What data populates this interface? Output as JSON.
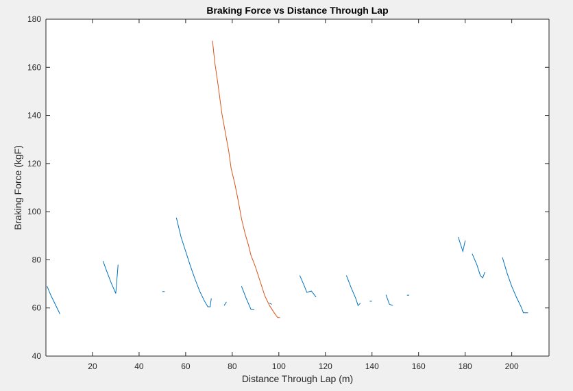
{
  "chart_data": {
    "type": "line",
    "title": "Braking Force vs Distance Through Lap",
    "xlabel": "Distance Through Lap (m)",
    "ylabel": "Braking Force (kgF)",
    "xlim": [
      0,
      216
    ],
    "ylim": [
      40,
      180
    ],
    "xticks": [
      20,
      40,
      60,
      80,
      100,
      120,
      140,
      160,
      180,
      200
    ],
    "yticks": [
      40,
      60,
      80,
      100,
      120,
      140,
      160,
      180
    ],
    "grid": false,
    "colors": {
      "blue": "#0072BD",
      "orange": "#D95319",
      "axes_bg": "#ffffff",
      "figure_bg": "#f0f0f0"
    },
    "series": [
      {
        "color": "#0072BD",
        "segments": [
          [
            [
              0.5,
              69
            ],
            [
              2,
              65.5
            ],
            [
              4,
              61.5
            ],
            [
              6,
              57.5
            ]
          ],
          [
            [
              24.5,
              79.5
            ],
            [
              26,
              75.5
            ],
            [
              28,
              70.5
            ],
            [
              30,
              66
            ],
            [
              31,
              78
            ]
          ],
          [
            [
              50,
              66.8
            ],
            [
              51,
              66.8
            ]
          ],
          [
            [
              56,
              97.5
            ],
            [
              58,
              89.5
            ],
            [
              60,
              83.5
            ],
            [
              62,
              77.5
            ],
            [
              64,
              72
            ],
            [
              66,
              67
            ],
            [
              68,
              63
            ],
            [
              69.5,
              60.5
            ],
            [
              70.5,
              60.5
            ],
            [
              71,
              64
            ]
          ],
          [
            [
              76.5,
              61
            ],
            [
              77.5,
              62.5
            ]
          ],
          [
            [
              84,
              69
            ],
            [
              86,
              64
            ],
            [
              88,
              59.5
            ],
            [
              89.5,
              59.5
            ]
          ],
          [
            [
              96,
              62
            ],
            [
              97,
              61.5
            ]
          ],
          [
            [
              109,
              73.5
            ],
            [
              111,
              69
            ],
            [
              112,
              66.5
            ],
            [
              114,
              67
            ],
            [
              116,
              64.5
            ]
          ],
          [
            [
              129,
              73.5
            ],
            [
              131,
              68.5
            ],
            [
              133,
              64
            ],
            [
              134,
              61
            ],
            [
              135,
              62
            ]
          ],
          [
            [
              139,
              62.8
            ],
            [
              140,
              62.8
            ]
          ],
          [
            [
              146,
              65.5
            ],
            [
              147.5,
              61.5
            ],
            [
              149,
              61
            ]
          ],
          [
            [
              155,
              65.3
            ],
            [
              156,
              65.3
            ]
          ],
          [
            [
              177,
              89.5
            ],
            [
              179,
              83.5
            ],
            [
              180,
              88
            ]
          ],
          [
            [
              183,
              82.5
            ],
            [
              185,
              78
            ],
            [
              186.5,
              73.5
            ],
            [
              187.5,
              72.5
            ],
            [
              188.5,
              75
            ]
          ],
          [
            [
              196,
              81
            ],
            [
              198,
              74.5
            ],
            [
              200,
              69
            ],
            [
              202,
              64.5
            ],
            [
              204,
              60.5
            ],
            [
              205,
              58
            ],
            [
              207,
              58
            ]
          ]
        ]
      },
      {
        "color": "#D95319",
        "segments": [
          [
            [
              71.5,
              171
            ],
            [
              72.5,
              162
            ],
            [
              74,
              152
            ],
            [
              75.5,
              141
            ],
            [
              77,
              133
            ],
            [
              78.5,
              125
            ],
            [
              79.5,
              118
            ],
            [
              81,
              112
            ],
            [
              82.5,
              105
            ],
            [
              84,
              97
            ],
            [
              85.5,
              91
            ],
            [
              87,
              86
            ],
            [
              88,
              82
            ],
            [
              90,
              77
            ],
            [
              92,
              71
            ],
            [
              94,
              65
            ],
            [
              96,
              61
            ],
            [
              98,
              58
            ],
            [
              99.5,
              56
            ],
            [
              100.5,
              56
            ]
          ]
        ]
      }
    ]
  }
}
